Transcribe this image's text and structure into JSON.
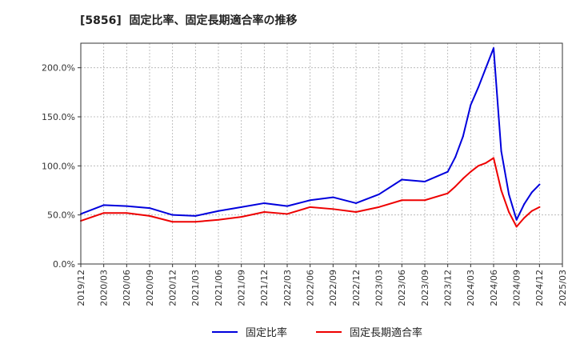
{
  "chart_data": {
    "type": "line",
    "title": "[5856]  固定比率、固定長期適合率の推移",
    "xlabel": "",
    "ylabel": "",
    "xlim": [
      201912,
      202503
    ],
    "ylim": [
      0,
      225
    ],
    "y_ticks": [
      0,
      50,
      100,
      150,
      200
    ],
    "y_tick_labels": [
      "0.0%",
      "50.0%",
      "100.0%",
      "150.0%",
      "200.0%"
    ],
    "x_tick_labels": [
      "2019/12",
      "2020/03",
      "2020/06",
      "2020/09",
      "2020/12",
      "2021/03",
      "2021/06",
      "2021/09",
      "2021/12",
      "2022/03",
      "2022/06",
      "2022/09",
      "2022/12",
      "2023/03",
      "2023/06",
      "2023/09",
      "2023/12",
      "2024/03",
      "2024/06",
      "2024/09",
      "2024/12",
      "2025/03"
    ],
    "grid": true,
    "legend": "bottom-center",
    "x": [
      201912,
      202003,
      202006,
      202009,
      202012,
      202103,
      202106,
      202109,
      202112,
      202203,
      202206,
      202209,
      202212,
      202303,
      202306,
      202309,
      202312,
      202401,
      202402,
      202403,
      202404,
      202405,
      202406,
      202407,
      202408,
      202409,
      202410,
      202411,
      202412
    ],
    "series": [
      {
        "name": "固定比率",
        "color": "#0000dd",
        "values": [
          51,
          60,
          59,
          57,
          50,
          49,
          54,
          58,
          62,
          59,
          65,
          68,
          62,
          71,
          86,
          84,
          94,
          109,
          130,
          162,
          180,
          200,
          220,
          115,
          71,
          45,
          61,
          73,
          81
        ]
      },
      {
        "name": "固定長期適合率",
        "color": "#ee0000",
        "values": [
          44,
          52,
          52,
          49,
          43,
          43,
          45,
          48,
          53,
          51,
          58,
          56,
          53,
          58,
          65,
          65,
          72,
          79,
          87,
          94,
          100,
          103,
          108,
          75,
          53,
          38,
          47,
          54,
          58
        ]
      }
    ]
  }
}
